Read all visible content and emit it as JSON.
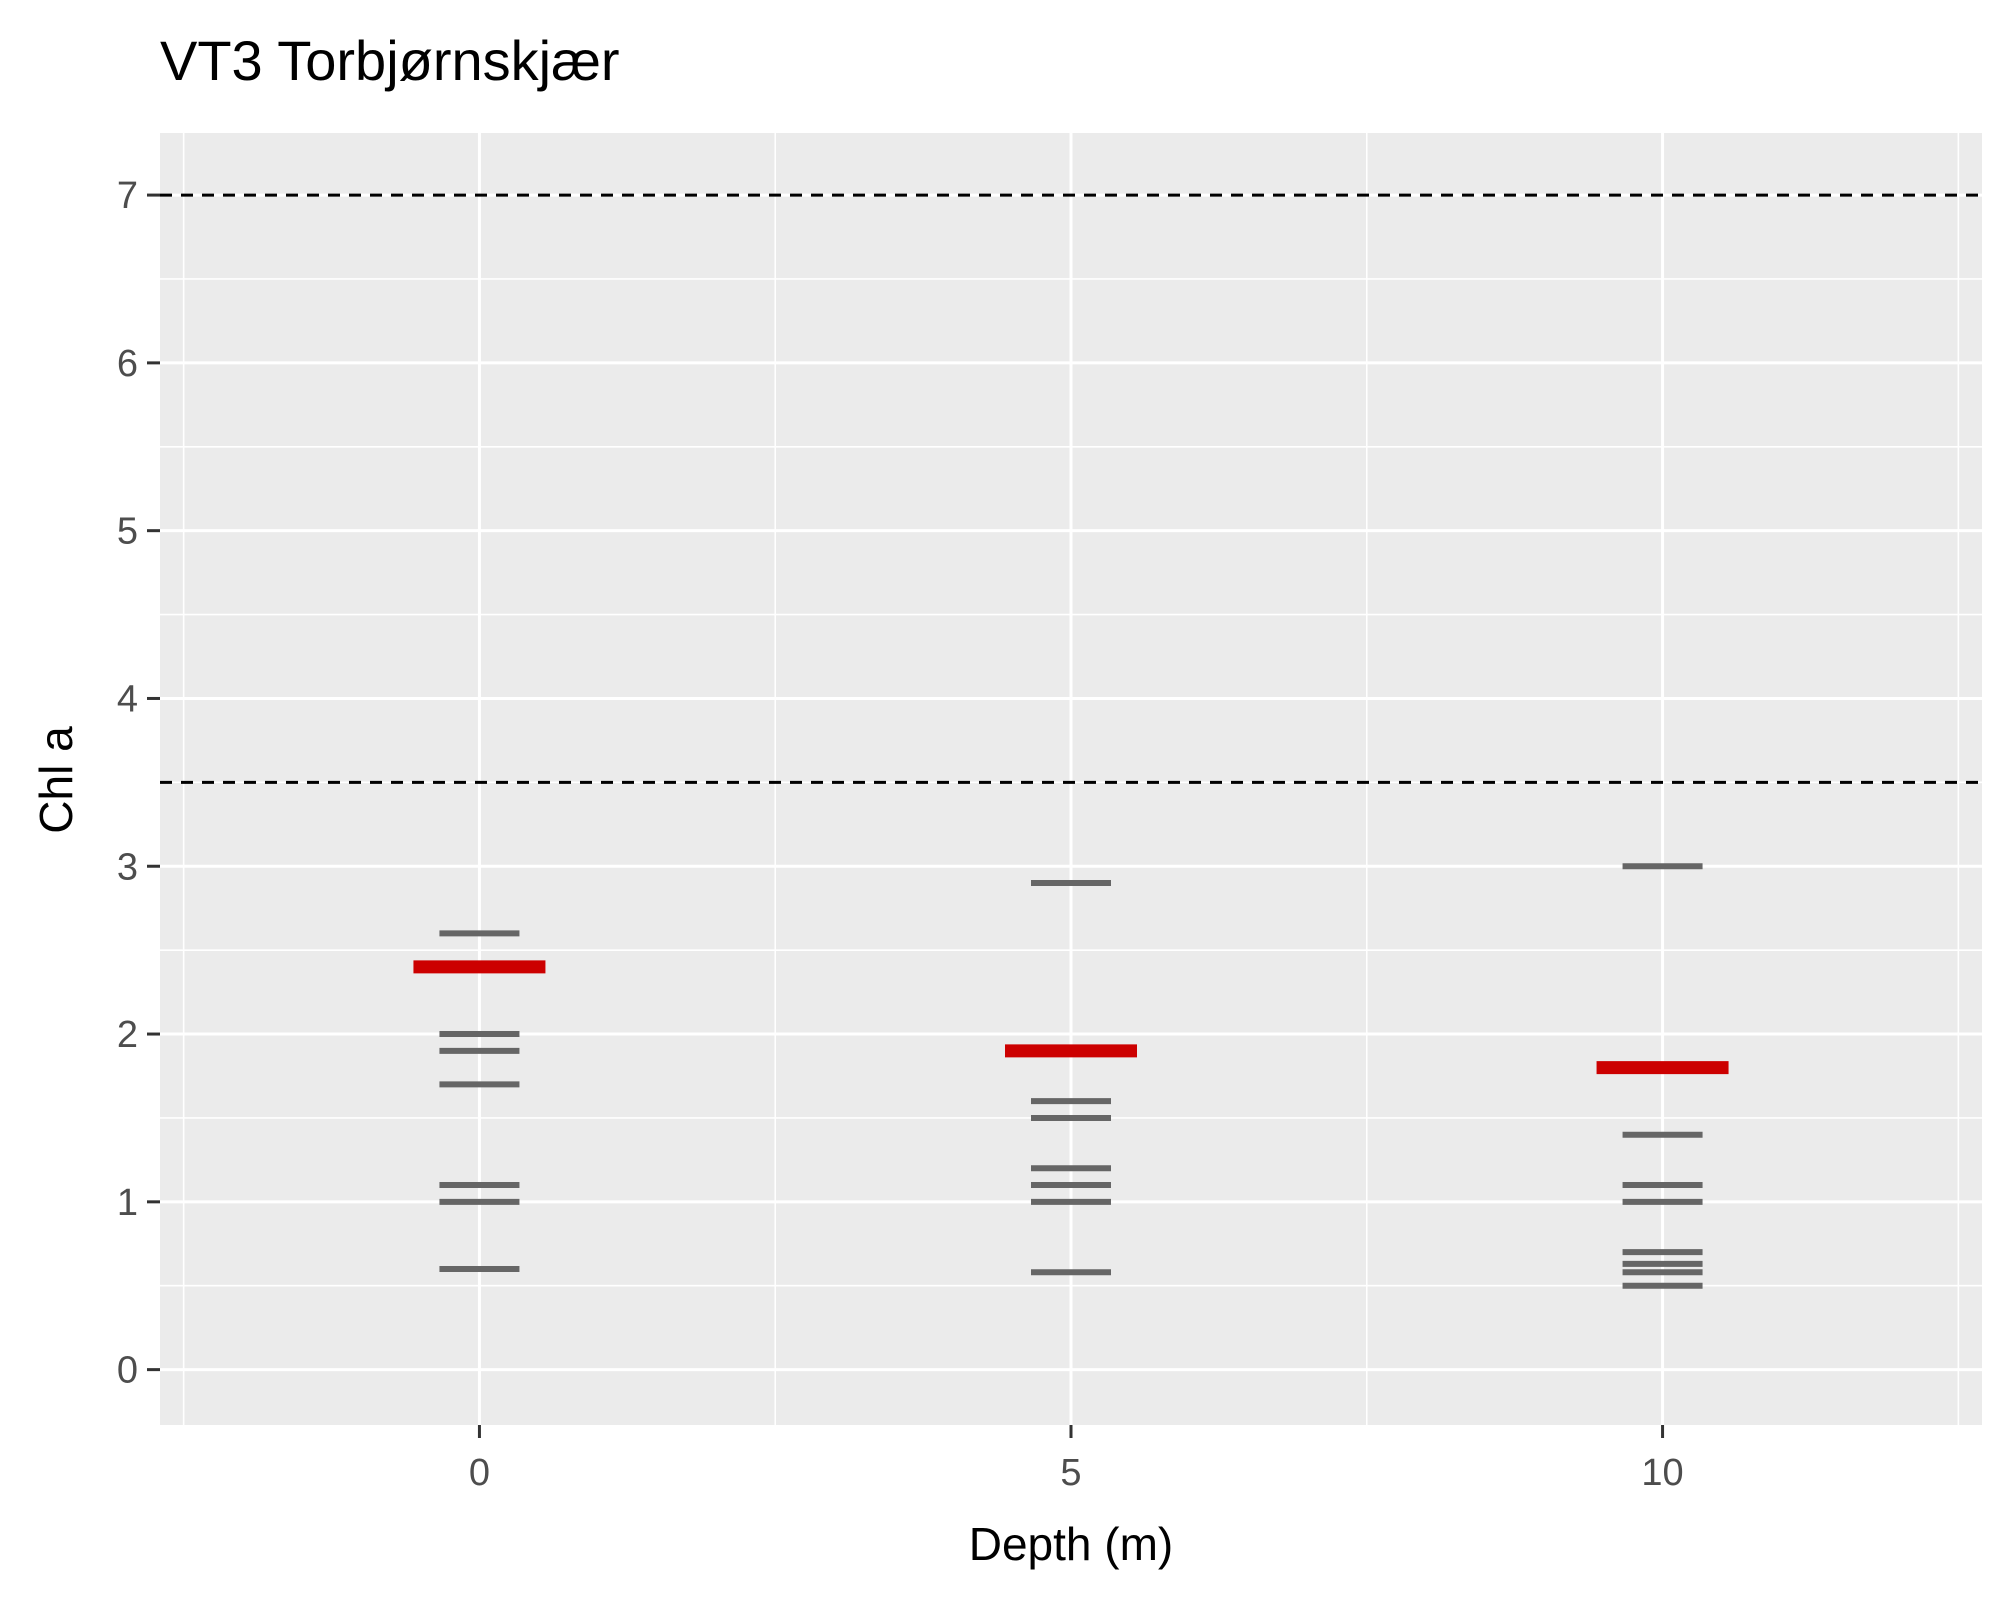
{
  "chart_data": {
    "type": "scatter",
    "title": "VT3 Torbjørnskjær",
    "xlabel": "Depth (m)",
    "ylabel": "Chl a",
    "xlim": [
      -2.7,
      12.7
    ],
    "ylim": [
      -0.33,
      7.37
    ],
    "x_ticks": [
      0,
      5,
      10
    ],
    "y_ticks": [
      0,
      1,
      2,
      3,
      4,
      5,
      6,
      7
    ],
    "grid": true,
    "reference_lines": [
      7,
      3.5
    ],
    "series": [
      {
        "values": [
          {
            "x": 0,
            "y": 2.6
          },
          {
            "x": 0,
            "y": 2.0
          },
          {
            "x": 0,
            "y": 1.9
          },
          {
            "x": 0,
            "y": 1.7
          },
          {
            "x": 0,
            "y": 1.1
          },
          {
            "x": 0,
            "y": 1.0
          },
          {
            "x": 0,
            "y": 0.6
          },
          {
            "x": 5,
            "y": 2.9
          },
          {
            "x": 5,
            "y": 1.6
          },
          {
            "x": 5,
            "y": 1.5
          },
          {
            "x": 5,
            "y": 1.2
          },
          {
            "x": 5,
            "y": 1.1
          },
          {
            "x": 5,
            "y": 1.0
          },
          {
            "x": 5,
            "y": 0.58
          },
          {
            "x": 10,
            "y": 3.0
          },
          {
            "x": 10,
            "y": 1.4
          },
          {
            "x": 10,
            "y": 1.1
          },
          {
            "x": 10,
            "y": 1.0
          },
          {
            "x": 10,
            "y": 0.7
          },
          {
            "x": 10,
            "y": 0.63
          },
          {
            "x": 10,
            "y": 0.58
          },
          {
            "x": 10,
            "y": 0.5
          }
        ]
      },
      {
        "values": [
          {
            "x": 0,
            "y": 2.4
          },
          {
            "x": 5,
            "y": 1.9
          },
          {
            "x": 10,
            "y": 1.8
          }
        ]
      }
    ],
    "colors": {
      "panel": "#ebebeb",
      "grid": "#ffffff",
      "observation": "#666666",
      "summary": "#cc0000",
      "reference": "#000000"
    }
  }
}
